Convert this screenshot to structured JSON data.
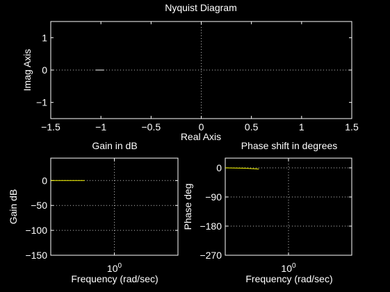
{
  "window": {
    "background_color": "#000000",
    "axes_color": "#ffffff",
    "grid_color": "#bfbfbf"
  },
  "chart_data": [
    {
      "type": "line",
      "id": "nyquist",
      "title": "Nyquist Diagram",
      "xlabel": "Real Axis",
      "ylabel": "Imag Axis",
      "xlim": [
        -1.5,
        1.5
      ],
      "ylim": [
        -1.5,
        1.5
      ],
      "xticks": [
        -1.5,
        -1,
        -0.5,
        0,
        0.5,
        1,
        1.5
      ],
      "xtick_labels": [
        "−1.5",
        "−1",
        "−0.5",
        "0",
        "0.5",
        "1",
        "1.5"
      ],
      "yticks": [
        -1,
        0,
        1
      ],
      "ytick_labels": [
        "−1",
        "0",
        "1"
      ],
      "grid": "origin-lines",
      "series": [
        {
          "color": "#ffffff",
          "x": [
            -1.05,
            -0.97
          ],
          "y": [
            0,
            0
          ]
        }
      ]
    },
    {
      "type": "line",
      "id": "gain",
      "title": "Gain in dB",
      "xlabel": "Frequency (rad/sec)",
      "ylabel": "Gain dB",
      "xscale": "log",
      "xlim": [
        0.1,
        10
      ],
      "ylim": [
        -150,
        45
      ],
      "xticks": [
        1
      ],
      "xtick_labels": [
        "10^0"
      ],
      "xtick_base": "10",
      "xtick_exp": "0",
      "yticks": [
        -150,
        -100,
        -50,
        0
      ],
      "ytick_labels": [
        "−150",
        "−100",
        "−50",
        "0"
      ],
      "grid": true,
      "series": [
        {
          "color": "#ffff00",
          "x": [
            0.1,
            0.34
          ],
          "y": [
            0,
            0
          ]
        }
      ]
    },
    {
      "type": "line",
      "id": "phase",
      "title": "Phase shift in degrees",
      "xlabel": "Frequency (rad/sec)",
      "ylabel": "Phase deg",
      "xscale": "log",
      "xlim": [
        0.1,
        10
      ],
      "ylim": [
        -270,
        30
      ],
      "xticks": [
        1
      ],
      "xtick_labels": [
        "10^0"
      ],
      "xtick_base": "10",
      "xtick_exp": "0",
      "yticks": [
        -270,
        -180,
        -90,
        0
      ],
      "ytick_labels": [
        "−270",
        "−180",
        "−90",
        "0"
      ],
      "grid": true,
      "series": [
        {
          "color": "#ffff00",
          "x": [
            0.1,
            0.2,
            0.3,
            0.34
          ],
          "y": [
            0,
            -1,
            -3,
            -4
          ]
        }
      ]
    }
  ]
}
